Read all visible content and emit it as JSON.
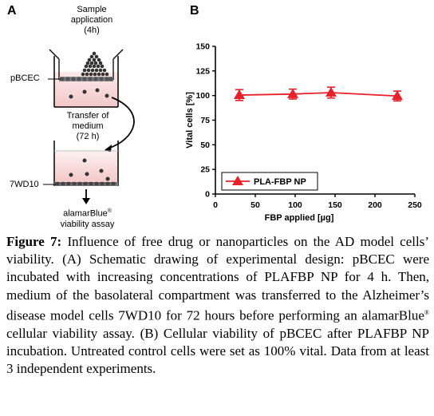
{
  "panel_a": {
    "label": "A",
    "sample_application": [
      "Sample",
      "application",
      "(4h)"
    ],
    "pbcec_label": "pBCEC",
    "transfer": [
      "Transfer of",
      "medium",
      "(72 h)"
    ],
    "wd_label": "7WD10",
    "assay": [
      "alamarBlue",
      "viability assay"
    ],
    "assay_mark": "®"
  },
  "panel_b": {
    "label": "B"
  },
  "chart_data": {
    "type": "line",
    "xlabel": "FBP applied [µg]",
    "ylabel": "Vital cells [%]",
    "xlim": [
      0,
      250
    ],
    "ylim": [
      0,
      150
    ],
    "xticks": [
      "0",
      "50",
      "100",
      "150",
      "200",
      "250"
    ],
    "yticks": [
      "0",
      "25",
      "50",
      "75",
      "100",
      "125",
      "150"
    ],
    "legend_position": "bottom-left",
    "series": [
      {
        "name": "PLA-FBP NP",
        "color": "#e8202a",
        "marker": "triangle",
        "x": [
          30,
          97,
          145,
          228
        ],
        "y": [
          100.5,
          101.5,
          103,
          99.5
        ],
        "err": [
          5.5,
          5,
          5.5,
          5
        ]
      }
    ]
  },
  "caption": {
    "fig_label": "Figure 7:",
    "text_part1": " Influence of free drug or nanoparticles on the AD model cells’ viability. (A) Schematic drawing of experimental design: pBCEC were incubated with increasing concentrations of PLAFBP NP for 4 h. Then, medium of the basolateral compartment was transferred to the Alzheimer’s disease model cells 7WD10 for 72 hours before performing an alamarBlue",
    "reg_mark": "®",
    "text_part2": " cellular viability assay. (B) Cellular viability of pBCEC after PLAFBP NP incubation. Untreated control cells were set as 100% vital. Data from at least 3 independent experiments."
  }
}
